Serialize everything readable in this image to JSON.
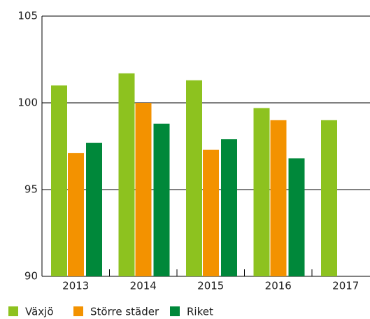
{
  "chart_data": {
    "type": "bar",
    "categories": [
      "2013",
      "2014",
      "2015",
      "2016",
      "2017"
    ],
    "series": [
      {
        "name": "Växjö",
        "color": "#8dc21f",
        "values": [
          101.0,
          101.7,
          101.3,
          99.7,
          99.0
        ]
      },
      {
        "name": "Större städer",
        "color": "#f39200",
        "values": [
          97.1,
          100.0,
          97.3,
          99.0,
          null
        ]
      },
      {
        "name": "Riket",
        "color": "#00883a",
        "values": [
          97.7,
          98.8,
          97.9,
          96.8,
          null
        ]
      }
    ],
    "ylim": [
      90,
      105
    ],
    "yticks": [
      90,
      95,
      100,
      105
    ],
    "grid": true,
    "legend": "bottom"
  }
}
